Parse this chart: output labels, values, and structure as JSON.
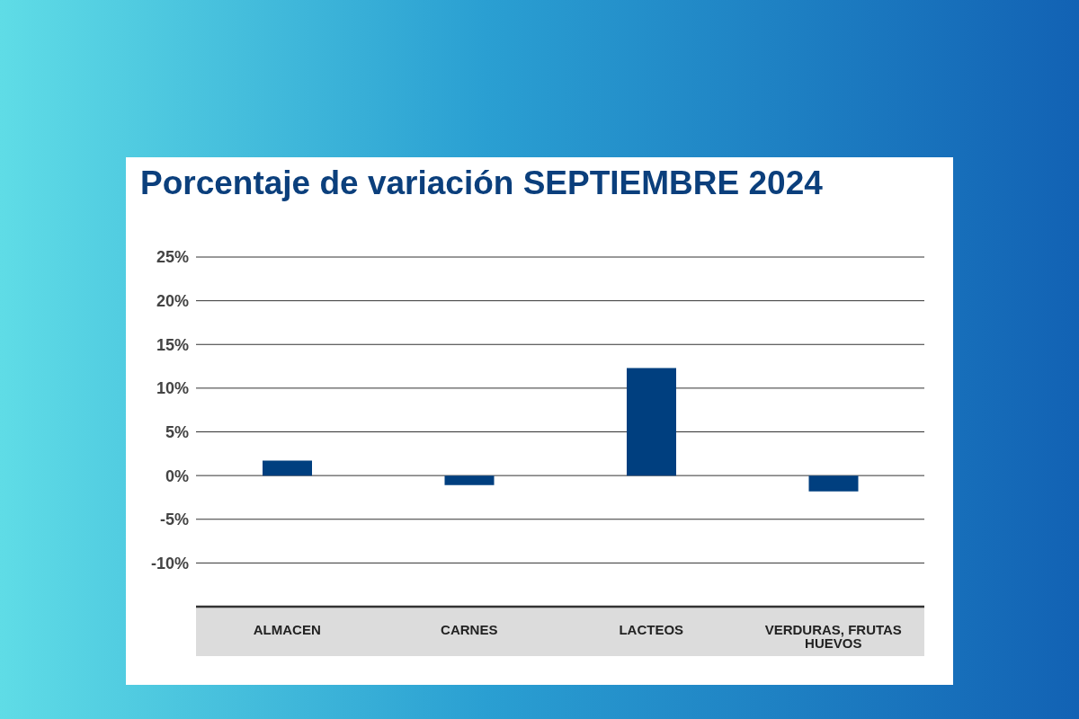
{
  "chart_data": {
    "type": "bar",
    "title": "Porcentaje de variación SEPTIEMBRE 2024",
    "categories": [
      "ALMACEN",
      "CARNES",
      "LACTEOS",
      "VERDURAS, FRUTAS HUEVOS"
    ],
    "values": [
      1.7,
      -1.1,
      12.3,
      -1.8
    ],
    "color": "#003f7f",
    "ylim": [
      -15,
      25
    ],
    "yticks": [
      {
        "value": -15,
        "label": null
      },
      {
        "value": -10,
        "label": "-10%"
      },
      {
        "value": -5,
        "label": "-5%"
      },
      {
        "value": 0,
        "label": "0%"
      },
      {
        "value": 5,
        "label": "5%"
      },
      {
        "value": 10,
        "label": "10%"
      },
      {
        "value": 15,
        "label": "15%"
      },
      {
        "value": 20,
        "label": "20%"
      },
      {
        "value": 25,
        "label": "25%"
      }
    ],
    "grid": "y"
  }
}
